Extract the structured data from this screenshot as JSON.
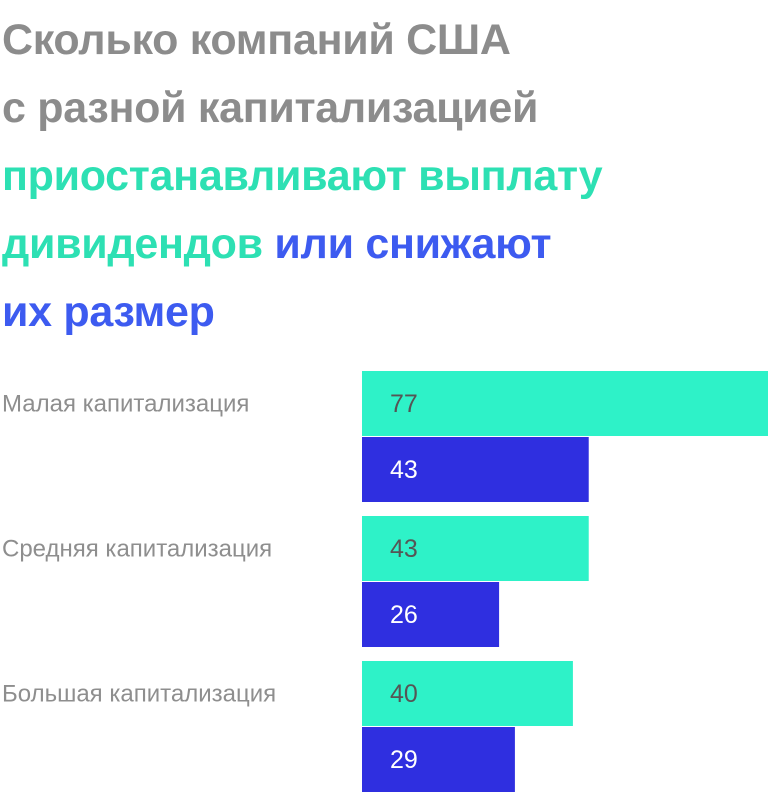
{
  "title": {
    "line1": "Сколько компаний США",
    "line2": "с разной капитализацией",
    "line3": "приостанавливают выплату",
    "line4_a": "дивидендов",
    "line4_b": " или снижают",
    "line5": "их размер"
  },
  "colors": {
    "title_gray": "#8c8c8c",
    "suspend": "#2ef2c8",
    "reduce": "#2f2fe0",
    "label_gray": "#8e8e8e"
  },
  "chart_data": {
    "type": "bar",
    "orientation": "horizontal",
    "categories": [
      "Малая капитализация",
      "Средняя капитализация",
      "Большая капитализация"
    ],
    "series": [
      {
        "values": [
          77,
          43,
          40
        ],
        "color": "#2ef2c8"
      },
      {
        "values": [
          43,
          26,
          29
        ],
        "color": "#2f2fe0"
      }
    ],
    "xlim": [
      0,
      77
    ],
    "grid": false,
    "legend": "none"
  }
}
